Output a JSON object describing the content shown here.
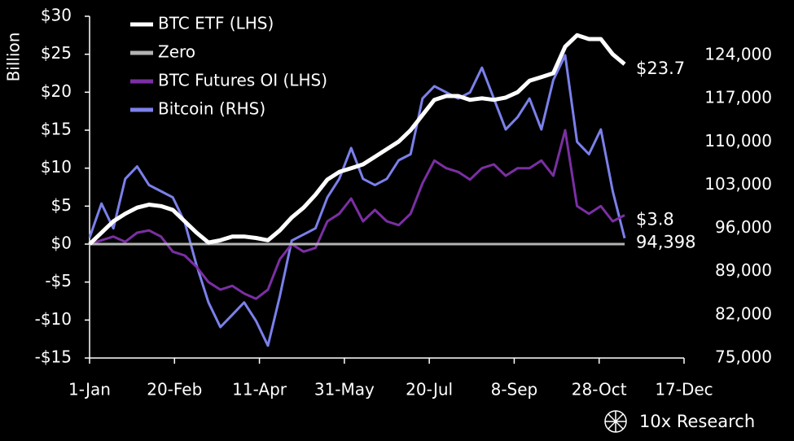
{
  "chart_data": {
    "type": "line",
    "y_label": "Billion",
    "brand": "10x Research",
    "x": [
      0,
      7,
      14,
      21,
      28,
      35,
      42,
      49,
      56,
      63,
      70,
      77,
      84,
      91,
      98,
      105,
      112,
      119,
      126,
      133,
      140,
      147,
      154,
      161,
      168,
      175,
      182,
      189,
      196,
      203,
      210,
      217,
      224,
      231,
      238,
      245,
      252,
      259,
      266,
      273,
      280,
      287,
      294,
      301,
      308,
      315
    ],
    "xlim": [
      0,
      350
    ],
    "xticks": [
      {
        "value": 0,
        "label": "1-Jan"
      },
      {
        "value": 50,
        "label": "20-Feb"
      },
      {
        "value": 100,
        "label": "11-Apr"
      },
      {
        "value": 150,
        "label": "31-May"
      },
      {
        "value": 200,
        "label": "20-Jul"
      },
      {
        "value": 250,
        "label": "8-Sep"
      },
      {
        "value": 300,
        "label": "28-Oct"
      },
      {
        "value": 350,
        "label": "17-Dec"
      }
    ],
    "ylim": [
      -15,
      30
    ],
    "yticks": [
      {
        "value": 30,
        "label": "$30"
      },
      {
        "value": 25,
        "label": "$25"
      },
      {
        "value": 20,
        "label": "$20"
      },
      {
        "value": 15,
        "label": "$15"
      },
      {
        "value": 10,
        "label": "$10"
      },
      {
        "value": 5,
        "label": "$5"
      },
      {
        "value": 0,
        "label": "$0"
      },
      {
        "value": -5,
        "label": "-$5"
      },
      {
        "value": -10,
        "label": "-$10"
      },
      {
        "value": -15,
        "label": "-$15"
      }
    ],
    "y2lim": [
      75000,
      130320
    ],
    "y2ticks": [
      {
        "value": 124000,
        "label": "124,000"
      },
      {
        "value": 117000,
        "label": "117,000"
      },
      {
        "value": 110000,
        "label": "110,000"
      },
      {
        "value": 103000,
        "label": "103,000"
      },
      {
        "value": 96000,
        "label": "96,000"
      },
      {
        "value": 89000,
        "label": "89,000"
      },
      {
        "value": 82000,
        "label": "82,000"
      },
      {
        "value": 75000,
        "label": "75,000"
      }
    ],
    "legend": "top-left",
    "series": [
      {
        "name": "BTC ETF (LHS)",
        "color": "#ffffff",
        "width": 5,
        "values": [
          0,
          1.5,
          3,
          4,
          4.8,
          5.2,
          5,
          4.5,
          3,
          1.5,
          0.2,
          0.5,
          1,
          1,
          0.8,
          0.5,
          1.8,
          3.5,
          4.8,
          6.5,
          8.5,
          9.5,
          10,
          10.5,
          11.5,
          12.5,
          13.5,
          15,
          17,
          19,
          19.5,
          19.5,
          19,
          19.2,
          19,
          19.3,
          20,
          21.5,
          22,
          22.5,
          26,
          27.5,
          27,
          27,
          25,
          23.7
        ],
        "value_labels": [
          null,
          null,
          null,
          null,
          null,
          null,
          null,
          null,
          null,
          null,
          null,
          null,
          null,
          null,
          null,
          null,
          null,
          null,
          null,
          null,
          null,
          null,
          null,
          null,
          null,
          null,
          null,
          null,
          null,
          null,
          null,
          null,
          null,
          null,
          null,
          null,
          null,
          null,
          null,
          null,
          null,
          null,
          null,
          null,
          null,
          "$23.7"
        ]
      },
      {
        "name": "Zero",
        "color": "#b3b3b3",
        "width": 3,
        "values": [
          0,
          0,
          0,
          0,
          0,
          0,
          0,
          0,
          0,
          0,
          0,
          0,
          0,
          0,
          0,
          0,
          0,
          0,
          0,
          0,
          0,
          0,
          0,
          0,
          0,
          0,
          0,
          0,
          0,
          0,
          0,
          0,
          0,
          0,
          0,
          0,
          0,
          0,
          0,
          0,
          0,
          0,
          0,
          0,
          0,
          0
        ]
      },
      {
        "name": "BTC Futures OI (LHS)",
        "color": "#7b2fa3",
        "width": 3,
        "values": [
          0,
          0.5,
          1,
          0.3,
          1.5,
          1.8,
          1,
          -1,
          -1.5,
          -3,
          -5,
          -6,
          -5.5,
          -6.5,
          -7.2,
          -6,
          -2,
          0,
          -1,
          -0.5,
          3,
          4,
          6,
          3,
          4.5,
          3,
          2.5,
          4,
          8,
          11,
          10,
          9.5,
          8.5,
          10,
          10.5,
          9,
          10,
          10,
          11,
          9,
          15,
          5,
          4,
          5,
          3,
          3.8
        ],
        "value_labels": [
          null,
          null,
          null,
          null,
          null,
          null,
          null,
          null,
          null,
          null,
          null,
          null,
          null,
          null,
          null,
          null,
          null,
          null,
          null,
          null,
          null,
          null,
          null,
          null,
          null,
          null,
          null,
          null,
          null,
          null,
          null,
          null,
          null,
          null,
          null,
          null,
          null,
          null,
          null,
          null,
          null,
          null,
          null,
          null,
          null,
          "$3.8"
        ]
      },
      {
        "name": "Bitcoin (RHS)",
        "color": "#7b80ea",
        "width": 3,
        "axis": "y2",
        "values": [
          94500,
          100000,
          96000,
          104000,
          106000,
          103000,
          102000,
          101000,
          97000,
          90000,
          84000,
          80000,
          82000,
          84000,
          81000,
          77000,
          85000,
          94000,
          95000,
          96000,
          101000,
          104000,
          109000,
          104000,
          103000,
          104000,
          107000,
          108000,
          117000,
          119000,
          118000,
          117000,
          118000,
          122000,
          117000,
          112000,
          114000,
          117000,
          112000,
          120000,
          124000,
          110000,
          108000,
          112000,
          102000,
          94398
        ],
        "value_labels": [
          null,
          null,
          null,
          null,
          null,
          null,
          null,
          null,
          null,
          null,
          null,
          null,
          null,
          null,
          null,
          null,
          null,
          null,
          null,
          null,
          null,
          null,
          null,
          null,
          null,
          null,
          null,
          null,
          null,
          null,
          null,
          null,
          null,
          null,
          null,
          null,
          null,
          null,
          null,
          null,
          null,
          null,
          null,
          null,
          null,
          "94,398"
        ]
      }
    ]
  }
}
